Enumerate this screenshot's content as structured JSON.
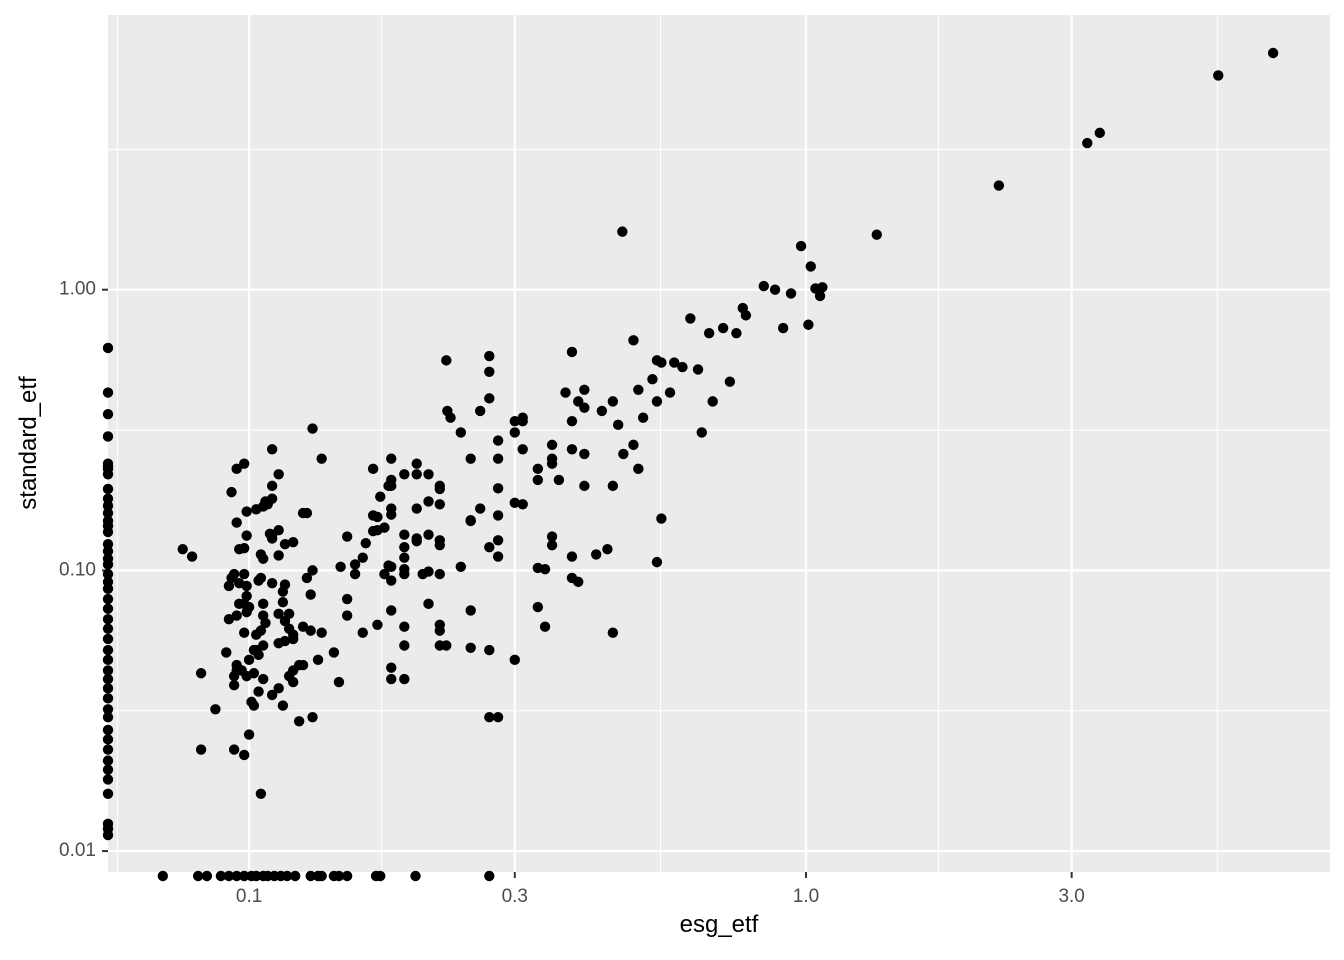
{
  "chart_data": {
    "type": "scatter",
    "x_label": "esg_etf",
    "y_label": "standard_etf",
    "xlog": true,
    "ylog": true,
    "grid": true,
    "panel_color": "#ebebeb",
    "grid_color": "#ffffff",
    "xlim": [
      0.0558,
      8.73
    ],
    "ylim": [
      0.00815,
      9.52
    ],
    "xticks": [
      0.1,
      0.3,
      {
        "value": 1,
        "label": "1.0"
      },
      {
        "value": 3,
        "label": "3.0"
      }
    ],
    "yticks": [
      0.01,
      {
        "value": 0.1,
        "label": "0.10"
      },
      {
        "value": 1,
        "label": "1.00"
      }
    ],
    "x_minor_grid": [
      0.058,
      0.173,
      0.548,
      1.73,
      5.48
    ],
    "y_minor_grid": [
      0.0316,
      0.316,
      3.16
    ],
    "series": [
      {
        "color": "#000000",
        "x": [
          6.9,
          5.5,
          3.37,
          3.2,
          2.22,
          1.34,
          0.468,
          0.98,
          1.02,
          1.07,
          1.04,
          1.06,
          1.01,
          0.84,
          0.88,
          0.94,
          0.91,
          0.78,
          0.77,
          0.75,
          0.71,
          0.67,
          0.62,
          0.65,
          0.68,
          0.73,
          0.58,
          0.64,
          0.6,
          0.55,
          0.54,
          0.57,
          0.53,
          0.54,
          0.49,
          0.5,
          0.51,
          0.49,
          0.47,
          0.5,
          0.54,
          0.55,
          0.45,
          0.46,
          0.45,
          0.44,
          0.42,
          0.45,
          0.43,
          0.38,
          0.4,
          0.4,
          0.39,
          0.4,
          0.4,
          0.38,
          0.38,
          0.38,
          0.38,
          0.39,
          0.37,
          0.35,
          0.35,
          0.35,
          0.35,
          0.35,
          0.36,
          0.33,
          0.33,
          0.33,
          0.34,
          0.34,
          0.33,
          0.31,
          0.31,
          0.3,
          0.3,
          0.31,
          0.31,
          0.3,
          0.3,
          0.28,
          0.27,
          0.27,
          0.27,
          0.26,
          0.28,
          0.28,
          0.28,
          0.28,
          0.28,
          0.27,
          0.27,
          0.27,
          0.28,
          0.26,
          0.25,
          0.25,
          0.25,
          0.24,
          0.25,
          0.25,
          0.226,
          0.227,
          0.23,
          0.24,
          0.22,
          0.22,
          0.22,
          0.21,
          0.21,
          0.21,
          0.2,
          0.2,
          0.2,
          0.2,
          0.22,
          0.22,
          0.21,
          0.205,
          0.21,
          0.22,
          0.22,
          0.22,
          0.22,
          0.226,
          0.19,
          0.18,
          0.18,
          0.18,
          0.18,
          0.18,
          0.178,
          0.172,
          0.175,
          0.178,
          0.175,
          0.18,
          0.18,
          0.18,
          0.19,
          0.19,
          0.19,
          0.2,
          0.19,
          0.19,
          0.19,
          0.19,
          0.18,
          0.18,
          0.19,
          0.167,
          0.17,
          0.167,
          0.17,
          0.167,
          0.162,
          0.16,
          0.17,
          0.16,
          0.155,
          0.155,
          0.15,
          0.15,
          0.15,
          0.146,
          0.142,
          0.145,
          0.135,
          0.13,
          0.13,
          0.127,
          0.129,
          0.135,
          0.133,
          0.13,
          0.129,
          0.127,
          0.125,
          0.125,
          0.123,
          0.125,
          0.116,
          0.12,
          0.113,
          0.11,
          0.11,
          0.109,
          0.11,
          0.113,
          0.11,
          0.11,
          0.108,
          0.107,
          0.106,
          0.103,
          0.099,
          0.106,
          0.113,
          0.11,
          0.116,
          0.115,
          0.115,
          0.113,
          0.118,
          0.116,
          0.118,
          0.12,
          0.12,
          0.116,
          0.113,
          0.123,
          0.12,
          0.118,
          0.12,
          0.113,
          0.11,
          0.115,
          0.105,
          0.105,
          0.104,
          0.106,
          0.106,
          0.107,
          0.105,
          0.103,
          0.106,
          0.103,
          0.104,
          0.102,
          0.1,
          0.102,
          0.106,
          0.104,
          0.101,
          0.102,
          0.105,
          0.098,
          0.099,
          0.096,
          0.098,
          0.095,
          0.098,
          0.096,
          0.099,
          0.099,
          0.098,
          0.1,
          0.099,
          0.096,
          0.098,
          0.095,
          0.097,
          0.099,
          0.1,
          0.098,
          0.095,
          0.093,
          0.094,
          0.092,
          0.092,
          0.093,
          0.095,
          0.095,
          0.094,
          0.094,
          0.094,
          0.091,
          0.087,
          0.082,
          0.082,
          0.079,
          0.076
        ],
        "values": [
          6.97,
          5.8,
          3.62,
          3.33,
          2.35,
          1.57,
          1.61,
          1.43,
          1.21,
          1.02,
          1.01,
          0.95,
          0.75,
          1.03,
          1.0,
          0.97,
          0.73,
          0.81,
          0.86,
          0.7,
          0.73,
          0.7,
          0.79,
          0.31,
          0.4,
          0.47,
          0.55,
          0.52,
          0.53,
          0.55,
          0.56,
          0.43,
          0.48,
          0.4,
          0.66,
          0.44,
          0.35,
          0.28,
          0.26,
          0.23,
          0.107,
          0.153,
          0.4,
          0.33,
          0.2,
          0.119,
          0.114,
          0.06,
          0.37,
          0.6,
          0.44,
          0.38,
          0.4,
          0.26,
          0.2,
          0.34,
          0.27,
          0.112,
          0.094,
          0.091,
          0.43,
          0.28,
          0.25,
          0.24,
          0.132,
          0.123,
          0.21,
          0.23,
          0.21,
          0.102,
          0.101,
          0.063,
          0.074,
          0.35,
          0.34,
          0.34,
          0.31,
          0.27,
          0.172,
          0.174,
          0.048,
          0.29,
          0.51,
          0.58,
          0.41,
          0.37,
          0.196,
          0.25,
          0.157,
          0.112,
          0.128,
          0.121,
          0.052,
          0.03,
          0.03,
          0.166,
          0.15,
          0.151,
          0.25,
          0.103,
          0.072,
          0.053,
          0.56,
          0.37,
          0.35,
          0.31,
          0.2,
          0.195,
          0.172,
          0.22,
          0.176,
          0.134,
          0.166,
          0.24,
          0.22,
          0.13,
          0.128,
          0.097,
          0.099,
          0.097,
          0.076,
          0.123,
          0.064,
          0.061,
          0.054,
          0.054,
          0.22,
          0.21,
          0.25,
          0.2,
          0.166,
          0.158,
          0.2,
          0.183,
          0.142,
          0.104,
          0.097,
          0.103,
          0.072,
          0.092,
          0.111,
          0.134,
          0.121,
          0.127,
          0.101,
          0.097,
          0.063,
          0.054,
          0.045,
          0.041,
          0.041,
          0.23,
          0.139,
          0.138,
          0.155,
          0.157,
          0.125,
          0.111,
          0.064,
          0.06,
          0.105,
          0.097,
          0.079,
          0.069,
          0.132,
          0.103,
          0.051,
          0.04,
          0.25,
          0.32,
          0.1,
          0.094,
          0.082,
          0.06,
          0.048,
          0.03,
          0.061,
          0.16,
          0.16,
          0.063,
          0.029,
          0.046,
          0.124,
          0.126,
          0.139,
          0.134,
          0.13,
          0.135,
          0.27,
          0.22,
          0.2,
          0.18,
          0.172,
          0.176,
          0.169,
          0.165,
          0.162,
          0.11,
          0.113,
          0.09,
          0.089,
          0.084,
          0.077,
          0.07,
          0.07,
          0.066,
          0.062,
          0.059,
          0.057,
          0.056,
          0.055,
          0.046,
          0.044,
          0.042,
          0.04,
          0.038,
          0.036,
          0.033,
          0.114,
          0.094,
          0.092,
          0.076,
          0.069,
          0.065,
          0.061,
          0.059,
          0.054,
          0.052,
          0.05,
          0.052,
          0.048,
          0.043,
          0.041,
          0.037,
          0.034,
          0.033,
          0.016,
          0.24,
          0.133,
          0.119,
          0.12,
          0.148,
          0.097,
          0.09,
          0.088,
          0.081,
          0.076,
          0.074,
          0.071,
          0.076,
          0.06,
          0.069,
          0.044,
          0.042,
          0.026,
          0.022,
          0.23,
          0.19,
          0.097,
          0.067,
          0.088,
          0.094,
          0.046,
          0.044,
          0.042,
          0.039,
          0.023,
          0.051,
          0.032,
          0.043,
          0.023,
          0.112,
          0.119
        ]
      },
      {
        "color": "#000000",
        "x": [
          0.0558,
          0.0558,
          0.0558,
          0.0558,
          0.0558,
          0.0558,
          0.0558,
          0.0558,
          0.0558,
          0.0558,
          0.0558,
          0.0558,
          0.0558,
          0.0558,
          0.0558,
          0.0558,
          0.0558,
          0.0558,
          0.0558,
          0.0558,
          0.0558,
          0.0558,
          0.0558,
          0.0558,
          0.0558,
          0.0558,
          0.0558,
          0.0558,
          0.0558,
          0.0558,
          0.0558,
          0.0558,
          0.0558,
          0.0558,
          0.0558,
          0.0558,
          0.0558,
          0.0558,
          0.0558,
          0.0558,
          0.0558,
          0.0558,
          0.0558,
          0.0558,
          0.0558
        ],
        "values": [
          0.62,
          0.43,
          0.36,
          0.3,
          0.24,
          0.235,
          0.23,
          0.22,
          0.195,
          0.18,
          0.17,
          0.16,
          0.15,
          0.144,
          0.137,
          0.124,
          0.117,
          0.11,
          0.105,
          0.097,
          0.091,
          0.086,
          0.079,
          0.073,
          0.067,
          0.062,
          0.057,
          0.052,
          0.048,
          0.044,
          0.041,
          0.038,
          0.035,
          0.032,
          0.03,
          0.027,
          0.025,
          0.023,
          0.021,
          0.0195,
          0.018,
          0.016,
          0.0125,
          0.012,
          0.0114
        ]
      },
      {
        "color": "#000000",
        "x": [
          0.07,
          0.081,
          0.084,
          0.089,
          0.092,
          0.095,
          0.098,
          0.101,
          0.103,
          0.106,
          0.108,
          0.111,
          0.114,
          0.117,
          0.121,
          0.129,
          0.133,
          0.135,
          0.142,
          0.145,
          0.15,
          0.169,
          0.172,
          0.199,
          0.27
        ],
        "values": [
          0.00815,
          0.00815,
          0.00815,
          0.00815,
          0.00815,
          0.00815,
          0.00815,
          0.00815,
          0.00815,
          0.00815,
          0.00815,
          0.00815,
          0.00815,
          0.00815,
          0.00815,
          0.00815,
          0.00815,
          0.00815,
          0.00815,
          0.00815,
          0.00815,
          0.00815,
          0.00815,
          0.00815,
          0.00815
        ]
      }
    ]
  }
}
